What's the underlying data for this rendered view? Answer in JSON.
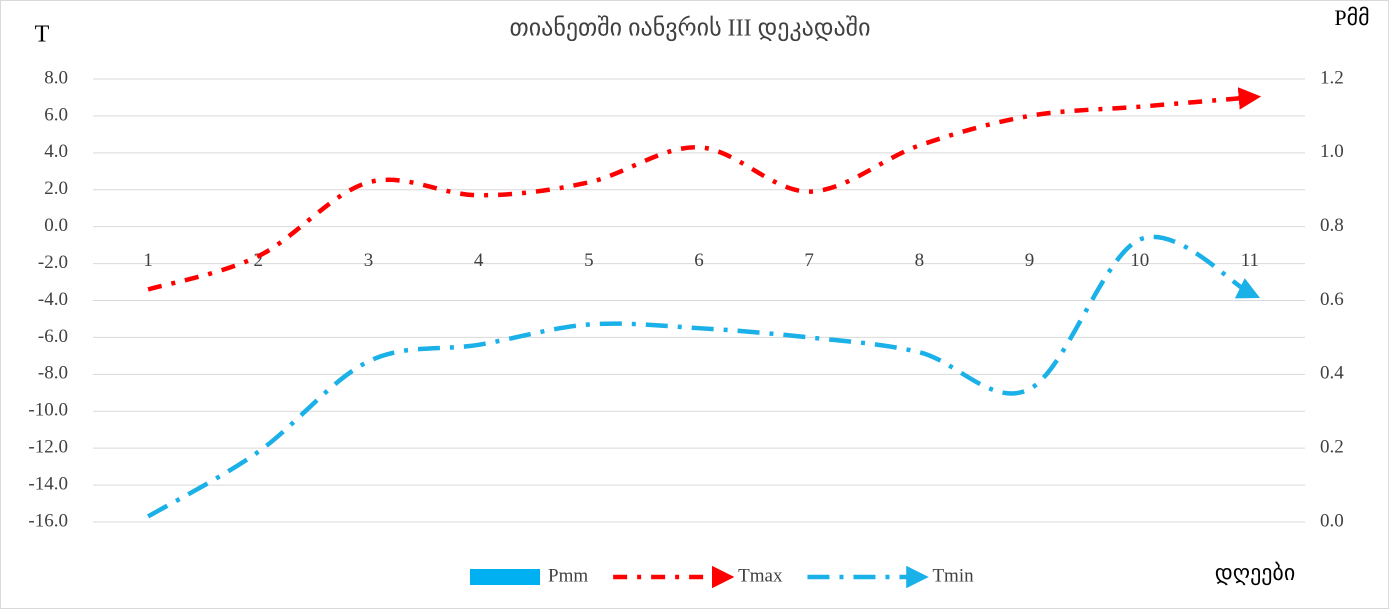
{
  "chart_data": {
    "type": "line",
    "title": "თიანეთში  იანვრის III დეკადაში",
    "y_label": "T",
    "y2_label": "Pმმ",
    "x_label": "დღეები",
    "categories": [
      "1",
      "2",
      "3",
      "4",
      "5",
      "6",
      "7",
      "8",
      "9",
      "10",
      "11"
    ],
    "series": [
      {
        "name": "Pmm",
        "type": "bar",
        "color": "#00b0f0",
        "axis": "y2",
        "values": [
          0,
          0,
          0,
          0,
          0,
          0,
          0,
          0,
          0,
          0,
          0
        ]
      },
      {
        "name": "Tmax",
        "type": "line",
        "color": "#ff0000",
        "values": [
          -3.4,
          -1.6,
          2.4,
          1.7,
          2.4,
          4.3,
          1.9,
          4.4,
          6.0,
          6.5,
          7.0
        ]
      },
      {
        "name": "Tmin",
        "type": "line",
        "color": "#1ab0e8",
        "values": [
          -15.7,
          -12.2,
          -7.3,
          -6.4,
          -5.3,
          -5.5,
          -6.0,
          -6.8,
          -8.8,
          -0.7,
          -3.6
        ]
      }
    ],
    "ylim": [
      -16,
      8
    ],
    "yticks": [
      {
        "value": 8,
        "label": "8.0"
      },
      {
        "value": 6,
        "label": "6.0"
      },
      {
        "value": 4,
        "label": "4.0"
      },
      {
        "value": 2,
        "label": "2.0"
      },
      {
        "value": 0,
        "label": "0.0"
      },
      {
        "value": -2,
        "label": "-2.0"
      },
      {
        "value": -4,
        "label": "-4.0"
      },
      {
        "value": -6,
        "label": "-6.0"
      },
      {
        "value": -8,
        "label": "-8.0"
      },
      {
        "value": -10,
        "label": "-10.0"
      },
      {
        "value": -12,
        "label": "-12.0"
      },
      {
        "value": -14,
        "label": "-14.0"
      },
      {
        "value": -16,
        "label": "-16.0"
      }
    ],
    "y2lim": [
      0,
      1.2
    ],
    "y2ticks": [
      {
        "value": 1.2,
        "label": "1.2"
      },
      {
        "value": 1,
        "label": "1.0"
      },
      {
        "value": 0.8,
        "label": "0.8"
      },
      {
        "value": 0.6,
        "label": "0.6"
      },
      {
        "value": 0.4,
        "label": "0.4"
      },
      {
        "value": 0.2,
        "label": "0.2"
      },
      {
        "value": 0,
        "label": "0.0"
      }
    ],
    "grid": true,
    "legend": "bottom"
  }
}
